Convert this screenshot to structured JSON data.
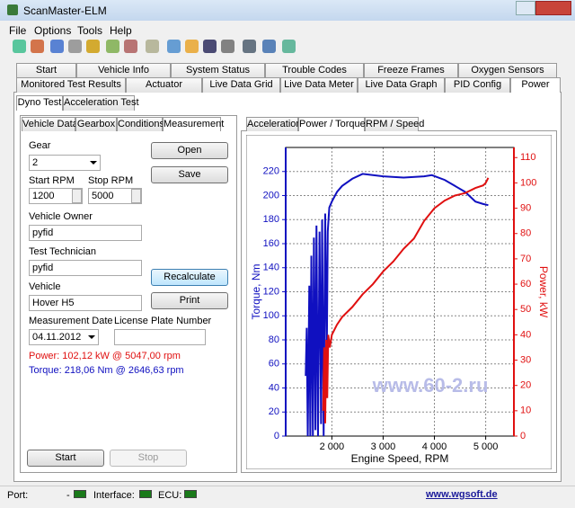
{
  "window": {
    "title": "ScanMaster-ELM"
  },
  "menu": [
    "File",
    "Options",
    "Tools",
    "Help"
  ],
  "tabs_row1": [
    "Start",
    "Vehicle Info",
    "System Status",
    "Trouble Codes",
    "Freeze Frames",
    "Oxygen Sensors"
  ],
  "tabs_row2": [
    "Monitored Test Results",
    "Actuator",
    "Live Data Grid",
    "Live Data Meter",
    "Live Data Graph",
    "PID Config",
    "Power"
  ],
  "subtabs": [
    "Dyno Test",
    "Acceleration Test"
  ],
  "inner_tabs": [
    "Vehicle Data",
    "Gearbox",
    "Conditions",
    "Measurement"
  ],
  "form": {
    "gear": {
      "label": "Gear",
      "value": "2"
    },
    "start_rpm": {
      "label": "Start RPM",
      "value": "1200"
    },
    "stop_rpm": {
      "label": "Stop RPM",
      "value": "5000"
    },
    "vehicle_owner": {
      "label": "Vehicle Owner",
      "value": "pyfid"
    },
    "test_technician": {
      "label": "Test Technician",
      "value": "pyfid"
    },
    "vehicle": {
      "label": "Vehicle",
      "value": "Hover H5"
    },
    "measurement_date": {
      "label": "Measurement Date",
      "value": "04.11.2012"
    },
    "license_plate": {
      "label": "License Plate Number"
    },
    "buttons": {
      "open": "Open",
      "save": "Save",
      "recalculate": "Recalculate",
      "print": "Print",
      "start": "Start",
      "stop": "Stop"
    },
    "result_power": "Power: 102,12 kW @ 5047,00 rpm",
    "result_torque": "Torque: 218,06 Nm @ 2646,63 rpm"
  },
  "chart_tabs": [
    "Acceleration",
    "Power / Torque",
    "RPM / Speed"
  ],
  "chart_data": {
    "type": "line",
    "xlabel": "Engine Speed, RPM",
    "ylabel": "Torque, Nm",
    "y2label": "Power, kW",
    "annotation": "www.60-2.ru",
    "xlim": [
      1100,
      5550
    ],
    "xticks": [
      {
        "value": 2000,
        "label": "2 000"
      },
      {
        "value": 3000,
        "label": "3 000"
      },
      {
        "value": 4000,
        "label": "4 000"
      },
      {
        "value": 5000,
        "label": "5 000"
      }
    ],
    "ylim": [
      0,
      240
    ],
    "yticks": [
      0,
      20,
      40,
      60,
      80,
      100,
      120,
      140,
      160,
      180,
      200,
      220
    ],
    "y2lim": [
      0,
      114
    ],
    "y2ticks": [
      0,
      10,
      20,
      30,
      40,
      50,
      60,
      70,
      80,
      90,
      100,
      110
    ],
    "grid": true,
    "series": [
      {
        "color": "#1010c0",
        "axis": "y",
        "x": [
          1490,
          1510,
          1530,
          1560,
          1580,
          1600,
          1630,
          1650,
          1680,
          1700,
          1730,
          1760,
          1790,
          1810,
          1840,
          1870,
          1900,
          1920,
          1950,
          2000,
          2100,
          2200,
          2400,
          2600,
          2800,
          3000,
          3400,
          3800,
          3950,
          4200,
          4400,
          4600,
          4800,
          4950,
          5050
        ],
        "values": [
          50,
          90,
          0,
          125,
          0,
          150,
          0,
          165,
          5,
          175,
          0,
          170,
          10,
          180,
          0,
          185,
          60,
          170,
          190,
          195,
          203,
          208,
          214,
          218,
          217,
          216,
          215,
          216,
          217,
          213,
          208,
          203,
          195,
          193,
          192
        ]
      },
      {
        "color": "#e01010",
        "axis": "y2",
        "x": [
          1830,
          1850,
          1870,
          1890,
          1910,
          1930,
          1960,
          2000,
          2100,
          2200,
          2400,
          2600,
          2800,
          3000,
          3200,
          3400,
          3600,
          3800,
          4000,
          4200,
          4400,
          4600,
          4800,
          4950,
          5000,
          5050
        ],
        "values": [
          10,
          35,
          5,
          38,
          15,
          40,
          35,
          40,
          44,
          47,
          51,
          56,
          60,
          65,
          69,
          74,
          78,
          85,
          90,
          93,
          95,
          96,
          98,
          99,
          100,
          102
        ]
      }
    ]
  },
  "status": {
    "port": "Port:",
    "port_value": "-",
    "interface": "Interface:",
    "ecu": "ECU:",
    "website": "www.wgsoft.de"
  }
}
